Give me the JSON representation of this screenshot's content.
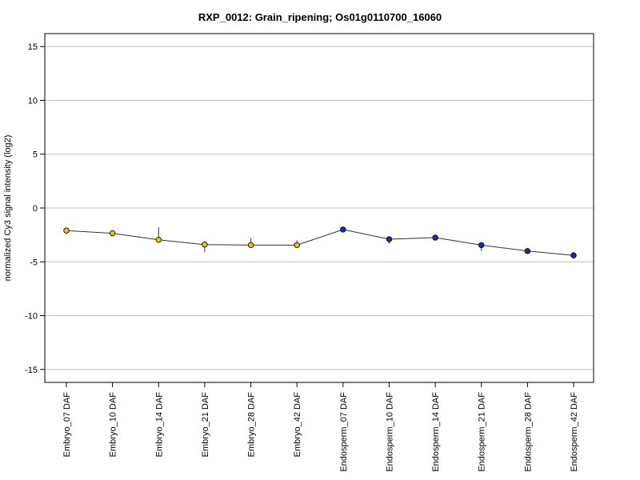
{
  "chart_data": {
    "type": "line",
    "title": "RXP_0012: Grain_ripening; Os01g0110700_16060",
    "xlabel": "",
    "ylabel": "normalized Cy3 signal intensity (log2)",
    "ylim": [
      -16.2,
      16.2
    ],
    "yticks": [
      "15",
      "10",
      "5",
      "0",
      "-5",
      "-10",
      "-15"
    ],
    "ytick_values": [
      15,
      10,
      5,
      0,
      -5,
      -10,
      -15
    ],
    "grid": true,
    "legend": "none",
    "categories": [
      "Embryo_07 DAF",
      "Embryo_10 DAF",
      "Embryo_14 DAF",
      "Embryo_21 DAF",
      "Embryo_28 DAF",
      "Embryo_42 DAF",
      "Endosperm_07 DAF",
      "Endosperm_10 DAF",
      "Endosperm_14 DAF",
      "Endosperm_21 DAF",
      "Endosperm_28 DAF",
      "Endosperm_42 DAF"
    ],
    "values": [
      -2.1,
      -2.35,
      -2.95,
      -3.4,
      -3.45,
      -3.45,
      -2.0,
      -2.9,
      -2.75,
      -3.45,
      -4.0,
      -4.4
    ],
    "errors": [
      [
        -2.0,
        -2.3
      ],
      [
        -2.2,
        -2.5
      ],
      [
        -1.8,
        -3.2
      ],
      [
        -3.1,
        -4.1
      ],
      [
        -2.8,
        -3.7
      ],
      [
        -3.0,
        -3.7
      ],
      [
        -1.9,
        -2.1
      ],
      [
        -2.7,
        -3.3
      ],
      [
        -2.6,
        -2.9
      ],
      [
        -3.2,
        -4.0
      ],
      [
        -3.9,
        -4.1
      ],
      [
        -4.1,
        -4.7
      ]
    ],
    "point_colors": [
      "#e6c21d",
      "#e6c21d",
      "#e6c21d",
      "#e6c21d",
      "#e6c21d",
      "#e6c21d",
      "#1a2fb0",
      "#1a2fb0",
      "#1a2fb0",
      "#1a2fb0",
      "#1a2fb0",
      "#1a2fb0"
    ],
    "line_color": "#333333",
    "grid_color": "#bfbfbf"
  }
}
